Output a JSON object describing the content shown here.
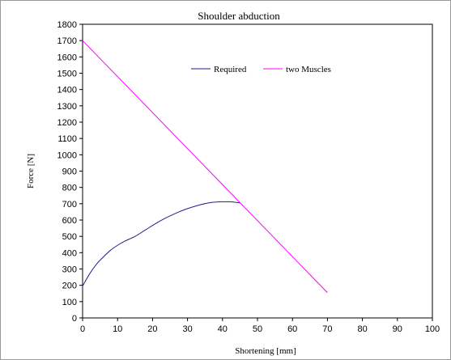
{
  "chart_data": {
    "type": "line",
    "title": "Shoulder abduction",
    "xlabel": "Shortening [mm]",
    "ylabel": "Force [N]",
    "xlim": [
      0,
      100
    ],
    "ylim": [
      0,
      1800
    ],
    "xticks": [
      0,
      10,
      20,
      30,
      40,
      50,
      60,
      70,
      80,
      90,
      100
    ],
    "yticks": [
      0,
      100,
      200,
      300,
      400,
      500,
      600,
      700,
      800,
      900,
      1000,
      1100,
      1200,
      1300,
      1400,
      1500,
      1600,
      1700,
      1800
    ],
    "grid": false,
    "legend_position": "top-center",
    "series": [
      {
        "name": "Required",
        "color": "#1f1f8f",
        "x": [
          0,
          2,
          4,
          6,
          8,
          10,
          12,
          15,
          18,
          21,
          24,
          27,
          30,
          33,
          36,
          38,
          40,
          42,
          44,
          45
        ],
        "y": [
          195,
          270,
          330,
          375,
          415,
          445,
          470,
          500,
          540,
          580,
          615,
          645,
          670,
          690,
          705,
          710,
          712,
          712,
          708,
          705
        ]
      },
      {
        "name": "two Muscles",
        "color": "#ff00ff",
        "x": [
          0,
          70
        ],
        "y": [
          1700,
          155
        ]
      }
    ]
  }
}
